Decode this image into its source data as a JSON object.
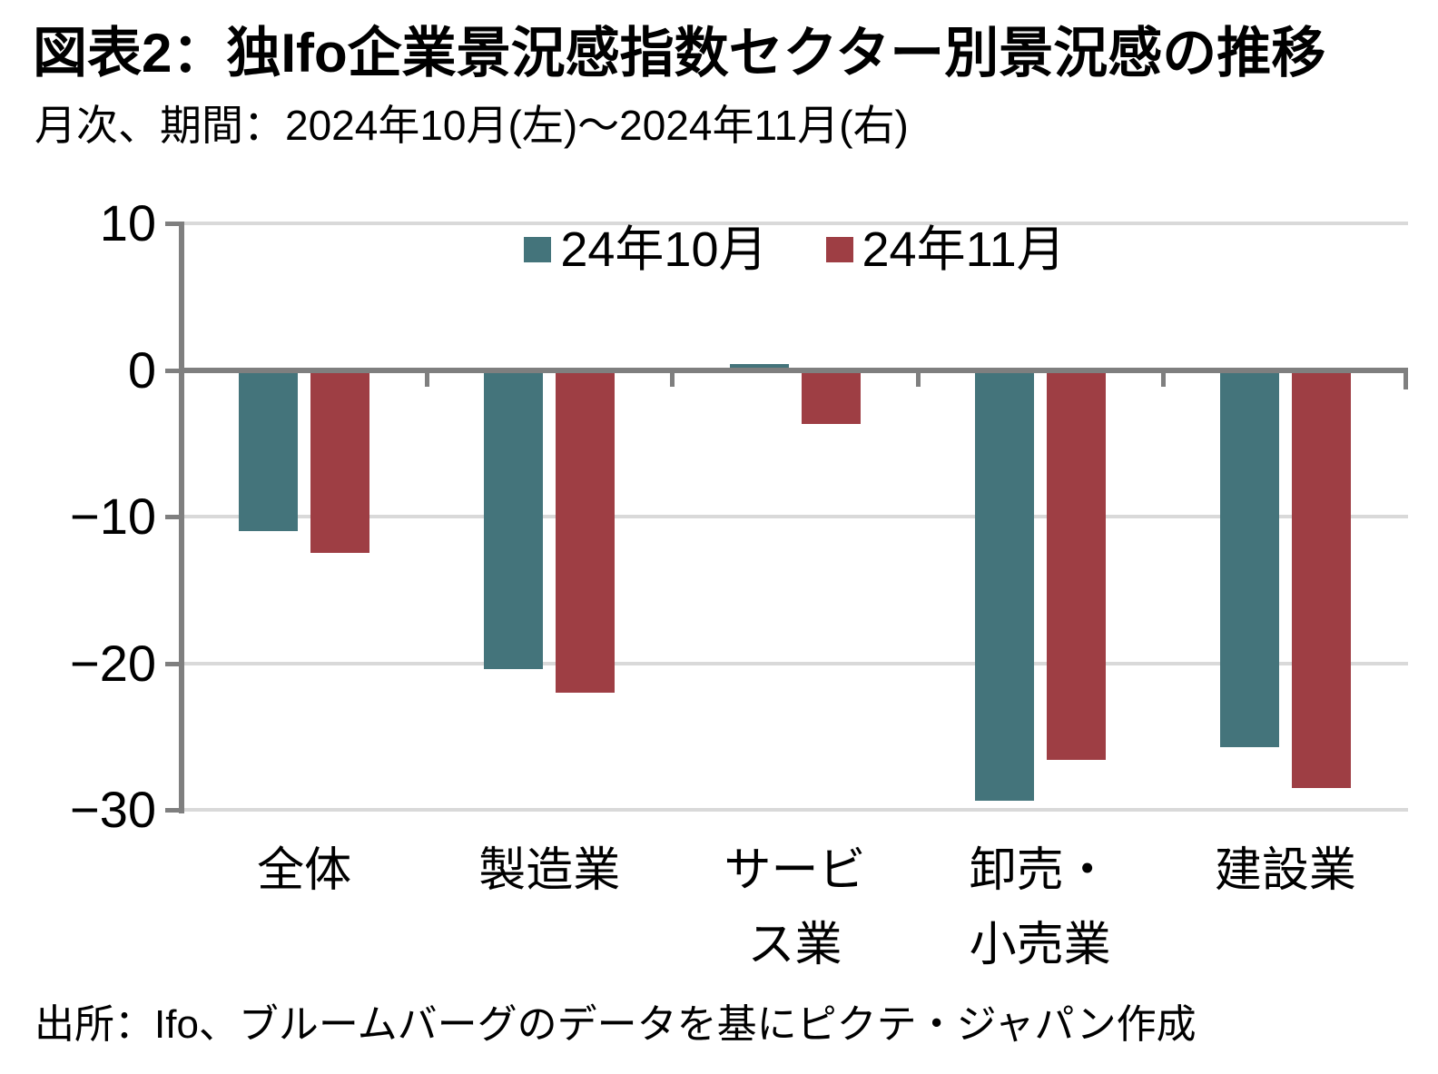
{
  "header": {
    "title": "図表2：独Ifo企業景況感指数セクター別景況感の推移",
    "subtitle": "月次、期間：2024年10月(左)～2024年11月(右)"
  },
  "chart_data": {
    "type": "bar",
    "categories": [
      "全体",
      "製造業",
      "サービス業",
      "卸売・小売業",
      "建設業"
    ],
    "category_label_lines": [
      [
        "全体"
      ],
      [
        "製造業"
      ],
      [
        "サービ",
        "ス業"
      ],
      [
        "卸売・",
        "小売業"
      ],
      [
        "建設業"
      ]
    ],
    "series": [
      {
        "name": "24年10月",
        "color": "#44747B",
        "values": [
          -11.0,
          -20.4,
          0.4,
          -29.4,
          -25.7
        ]
      },
      {
        "name": "24年11月",
        "color": "#9E3E44",
        "values": [
          -12.5,
          -22.0,
          -3.7,
          -26.6,
          -28.5
        ]
      }
    ],
    "ylim": [
      -30,
      10
    ],
    "yticks": [
      10,
      0,
      -10,
      -20,
      -30
    ],
    "ytick_labels": [
      "10",
      "0",
      "−10",
      "−20",
      "−30"
    ],
    "grid": true,
    "legend_position": "top-center",
    "axis_color": "#7F7F7F",
    "gridline_color": "#D9D9D9",
    "background_color": "#FFFFFF"
  },
  "footer": {
    "source": "出所：Ifo、ブルームバーグのデータを基にピクテ・ジャパン作成"
  }
}
